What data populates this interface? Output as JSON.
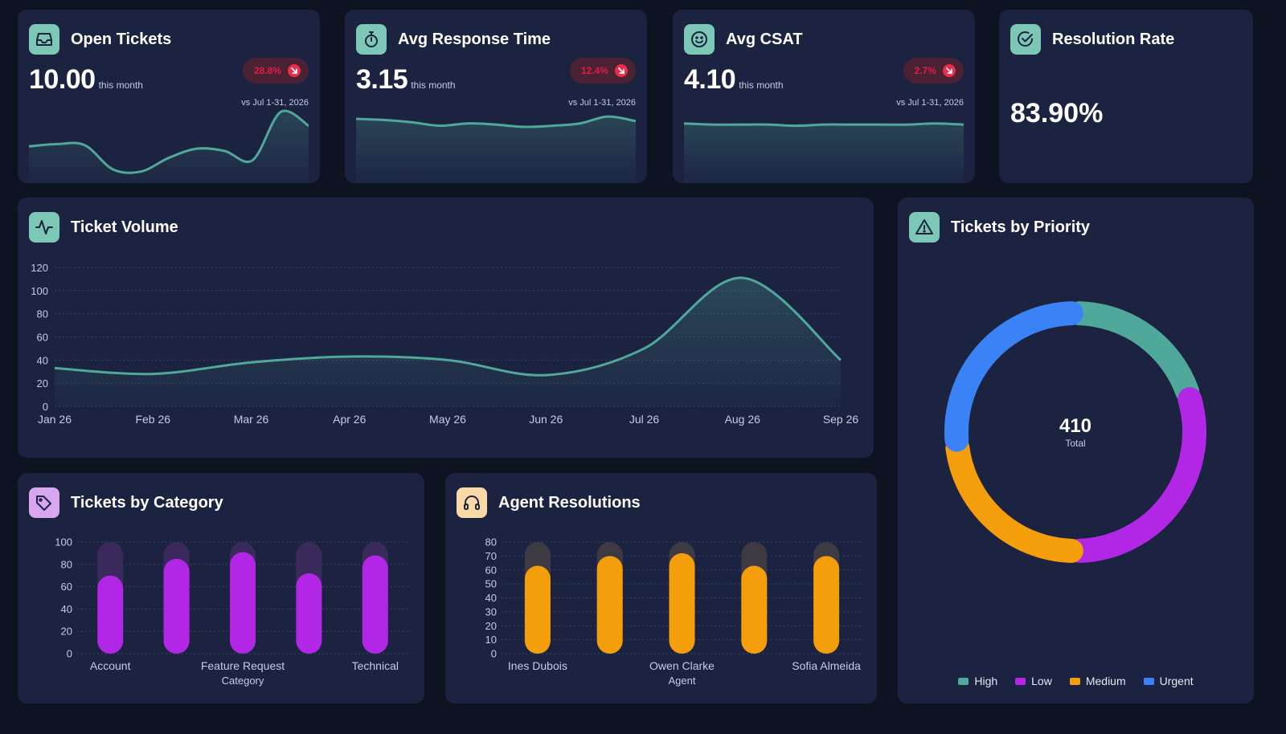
{
  "kpis": [
    {
      "title": "Open Tickets",
      "value": "10.00",
      "sub": "this month",
      "badge": "28.8%",
      "vs": "vs Jul 1-31, 2026",
      "icon": "inbox-icon",
      "trend": [
        32,
        34,
        33,
        12,
        10,
        22,
        30,
        28,
        20,
        62,
        50
      ]
    },
    {
      "title": "Avg Response Time",
      "value": "3.15",
      "sub": "this month",
      "badge": "12.4%",
      "vs": "vs Jul 1-31, 2026",
      "icon": "stopwatch-icon",
      "trend": [
        56,
        55,
        53,
        50,
        52,
        51,
        49,
        50,
        52,
        58,
        54
      ]
    },
    {
      "title": "Avg CSAT",
      "value": "4.10",
      "sub": "this month",
      "badge": "2.7%",
      "vs": "vs Jul 1-31, 2026",
      "icon": "smiley-icon",
      "trend": [
        52,
        51,
        51,
        51,
        50,
        51,
        51,
        51,
        51,
        52,
        51
      ]
    }
  ],
  "resolution": {
    "title": "Resolution Rate",
    "value": "83.90%",
    "icon": "check-circle-icon"
  },
  "volume": {
    "title": "Ticket Volume",
    "icon": "pulse-icon"
  },
  "priority": {
    "title": "Tickets by Priority",
    "icon": "warning-icon",
    "total": "410",
    "total_label": "Total"
  },
  "category": {
    "title": "Tickets by Category",
    "icon": "tag-icon"
  },
  "agents": {
    "title": "Agent Resolutions",
    "icon": "headset-icon"
  },
  "colors": {
    "teal": "#4fa89a",
    "purple": "#b227e6",
    "orange": "#f59e0b",
    "blue": "#3b82f6",
    "badge_red": "#e11d48",
    "card": "#1c2340",
    "bg": "#0e1322"
  },
  "chart_data": [
    {
      "type": "line",
      "title": "Ticket Volume",
      "x": [
        "Jan 26",
        "Feb 26",
        "Mar 26",
        "Apr 26",
        "May 26",
        "Jun 26",
        "Jul 26",
        "Aug 26",
        "Sep 26"
      ],
      "series": [
        {
          "values": [
            33,
            28,
            38,
            43,
            40,
            27,
            50,
            111,
            40
          ]
        }
      ],
      "yticks": [
        0,
        20,
        40,
        60,
        80,
        100,
        120
      ],
      "ylim": [
        0,
        120
      ],
      "grid": true
    },
    {
      "type": "pie",
      "title": "Tickets by Priority",
      "labels": [
        "High",
        "Low",
        "Medium",
        "Urgent"
      ],
      "values": [
        82,
        123,
        96,
        109
      ],
      "colors": [
        "#4fa89a",
        "#b227e6",
        "#f59e0b",
        "#3b82f6"
      ],
      "legend": "bottom"
    },
    {
      "type": "bar",
      "title": "Tickets by Category",
      "categories": [
        "Account",
        "",
        "Feature Request",
        "",
        "Technical"
      ],
      "values": [
        70,
        85,
        91,
        72,
        88
      ],
      "xlabel": "Category",
      "yticks": [
        0,
        20,
        40,
        60,
        80,
        100
      ],
      "ylim": [
        0,
        100
      ]
    },
    {
      "type": "bar",
      "title": "Agent Resolutions",
      "categories": [
        "Ines Dubois",
        "",
        "Owen Clarke",
        "",
        "Sofia Almeida"
      ],
      "values": [
        63,
        70,
        72,
        63,
        70
      ],
      "xlabel": "Agent",
      "yticks": [
        0,
        10,
        20,
        30,
        40,
        50,
        60,
        70,
        80
      ],
      "ylim": [
        0,
        80
      ]
    }
  ]
}
